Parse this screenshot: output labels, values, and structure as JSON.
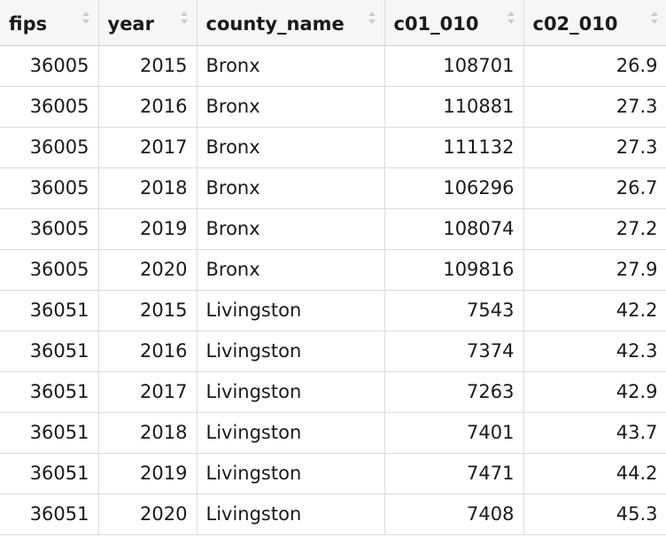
{
  "columns": [
    {
      "key": "fips",
      "label": "fips"
    },
    {
      "key": "year",
      "label": "year"
    },
    {
      "key": "county_name",
      "label": "county_name"
    },
    {
      "key": "c01_010",
      "label": "c01_010"
    },
    {
      "key": "c02_010",
      "label": "c02_010"
    }
  ],
  "rows": [
    [
      "36005",
      "2015",
      "Bronx",
      "108701",
      "26.9"
    ],
    [
      "36005",
      "2016",
      "Bronx",
      "110881",
      "27.3"
    ],
    [
      "36005",
      "2017",
      "Bronx",
      "111132",
      "27.3"
    ],
    [
      "36005",
      "2018",
      "Bronx",
      "106296",
      "26.7"
    ],
    [
      "36005",
      "2019",
      "Bronx",
      "108074",
      "27.2"
    ],
    [
      "36005",
      "2020",
      "Bronx",
      "109816",
      "27.9"
    ],
    [
      "36051",
      "2015",
      "Livingston",
      "7543",
      "42.2"
    ],
    [
      "36051",
      "2016",
      "Livingston",
      "7374",
      "42.3"
    ],
    [
      "36051",
      "2017",
      "Livingston",
      "7263",
      "42.9"
    ],
    [
      "36051",
      "2018",
      "Livingston",
      "7401",
      "43.7"
    ],
    [
      "36051",
      "2019",
      "Livingston",
      "7471",
      "44.2"
    ],
    [
      "36051",
      "2020",
      "Livingston",
      "7408",
      "45.3"
    ]
  ]
}
